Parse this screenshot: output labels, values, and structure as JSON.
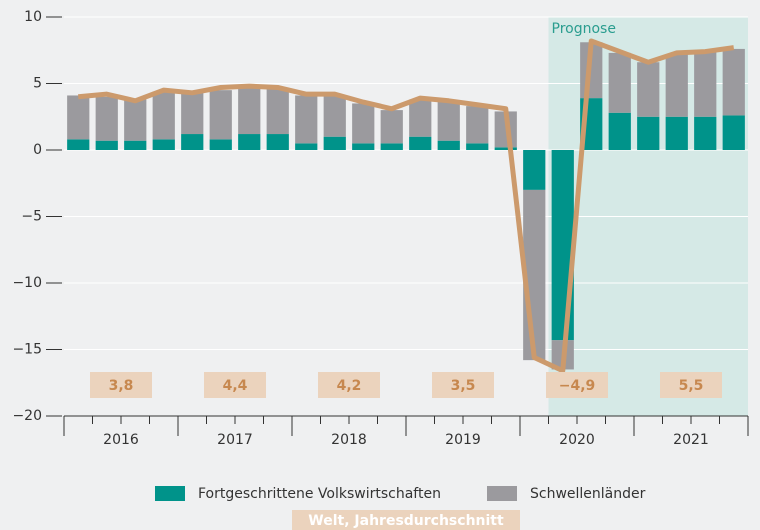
{
  "chart_data": {
    "type": "stacked-bar-line",
    "years": [
      "2016",
      "2017",
      "2018",
      "2019",
      "2020",
      "2021"
    ],
    "periods_per_year": 4,
    "series": [
      {
        "name": "Fortgeschrittene Volkswirtschaften",
        "color": "#00938a",
        "values": [
          0.8,
          0.7,
          0.7,
          0.8,
          1.2,
          0.8,
          1.2,
          1.2,
          0.5,
          1.0,
          0.5,
          0.5,
          1.0,
          0.7,
          0.5,
          0.2,
          -3.0,
          -14.3,
          3.9,
          2.8,
          2.5,
          2.5,
          2.5,
          2.6
        ]
      },
      {
        "name": "Schwellenländer",
        "color": "#9b9a9e",
        "values": [
          3.3,
          3.3,
          3.1,
          3.6,
          3.1,
          3.7,
          3.5,
          3.4,
          3.6,
          3.1,
          3.0,
          2.5,
          2.8,
          3.0,
          2.8,
          2.7,
          -12.8,
          -2.2,
          4.2,
          4.5,
          4.1,
          4.7,
          4.9,
          5.0
        ]
      }
    ],
    "line": {
      "color": "#cc9a6c",
      "values": [
        4.0,
        4.2,
        3.7,
        4.5,
        4.3,
        4.7,
        4.8,
        4.7,
        4.2,
        4.2,
        3.6,
        3.1,
        3.9,
        3.7,
        3.4,
        3.1,
        -15.6,
        -16.6,
        8.2,
        7.4,
        6.6,
        7.3,
        7.4,
        7.7
      ]
    },
    "annual_average": {
      "name": "Welt, Jahresdurchschnitt",
      "values": [
        3.8,
        4.4,
        4.2,
        3.5,
        -4.9,
        5.5
      ],
      "value_labels": [
        "3,8",
        "4,4",
        "4,2",
        "3,5",
        "−4,9",
        "5,5"
      ]
    },
    "forecast": {
      "label": "Prognose",
      "start_index": 17
    },
    "ylim": [
      -20,
      10
    ],
    "yticks": [
      10,
      5,
      0,
      {
        "value": -5,
        "label": "−5"
      },
      {
        "value": -10,
        "label": "−10"
      },
      {
        "value": -15,
        "label": "−15"
      },
      {
        "value": -20,
        "label": "−20"
      }
    ],
    "grid": true
  }
}
